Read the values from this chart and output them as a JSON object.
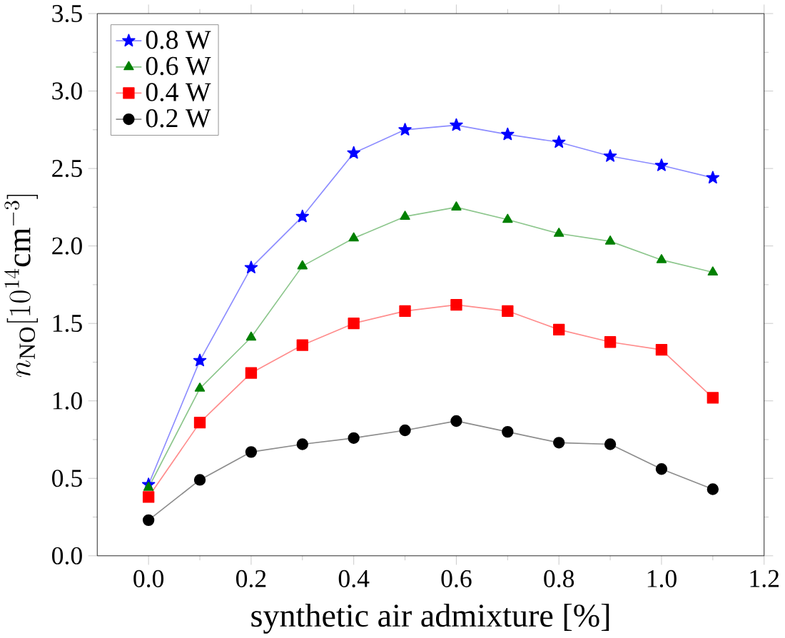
{
  "chart_data": {
    "type": "line",
    "xlabel": "synthetic air admixture [%]",
    "ylabel": "n_{\\mathrm{NO}}[10^{14}\\mathrm{cm}^{-3}]",
    "x": [
      0.0,
      0.1,
      0.2,
      0.3,
      0.4,
      0.5,
      0.6,
      0.7,
      0.8,
      0.9,
      1.0,
      1.1
    ],
    "series": [
      {
        "name": "0.8 W",
        "color": "#0000ff",
        "marker": "star",
        "values": [
          0.46,
          1.26,
          1.86,
          2.19,
          2.6,
          2.75,
          2.78,
          2.72,
          2.67,
          2.58,
          2.52,
          2.44
        ]
      },
      {
        "name": "0.6 W",
        "color": "#008000",
        "marker": "triangle",
        "values": [
          0.44,
          1.08,
          1.41,
          1.87,
          2.05,
          2.19,
          2.25,
          2.17,
          2.08,
          2.03,
          1.91,
          1.83
        ]
      },
      {
        "name": "0.4 W",
        "color": "#ff0000",
        "marker": "square",
        "values": [
          0.38,
          0.86,
          1.18,
          1.36,
          1.5,
          1.58,
          1.62,
          1.58,
          1.46,
          1.38,
          1.33,
          1.02
        ]
      },
      {
        "name": "0.2 W",
        "color": "#000000",
        "marker": "circle",
        "values": [
          0.23,
          0.49,
          0.67,
          0.72,
          0.76,
          0.81,
          0.87,
          0.8,
          0.73,
          0.72,
          0.56,
          0.43
        ]
      }
    ],
    "xlim": [
      -0.1,
      1.2
    ],
    "ylim": [
      0,
      3.5
    ],
    "xticks": [
      {
        "value": 0,
        "label": "0.0"
      },
      {
        "value": 0.2,
        "label": "0.2"
      },
      {
        "value": 0.4,
        "label": "0.4"
      },
      {
        "value": 0.6,
        "label": "0.6"
      },
      {
        "value": 0.8,
        "label": "0.8"
      },
      {
        "value": 1.0,
        "label": "1.0"
      },
      {
        "value": 1.2,
        "label": "1.2"
      }
    ],
    "yticks": [
      {
        "value": 0,
        "label": "0.0"
      },
      {
        "value": 0.5,
        "label": "0.5"
      },
      {
        "value": 1.0,
        "label": "1.0"
      },
      {
        "value": 1.5,
        "label": "1.5"
      },
      {
        "value": 2.0,
        "label": "2.0"
      },
      {
        "value": 2.5,
        "label": "2.5"
      },
      {
        "value": 3.0,
        "label": "3.0"
      },
      {
        "value": 3.5,
        "label": "3.5"
      }
    ],
    "legend": "top left",
    "grid": false,
    "line_style": "solid"
  }
}
